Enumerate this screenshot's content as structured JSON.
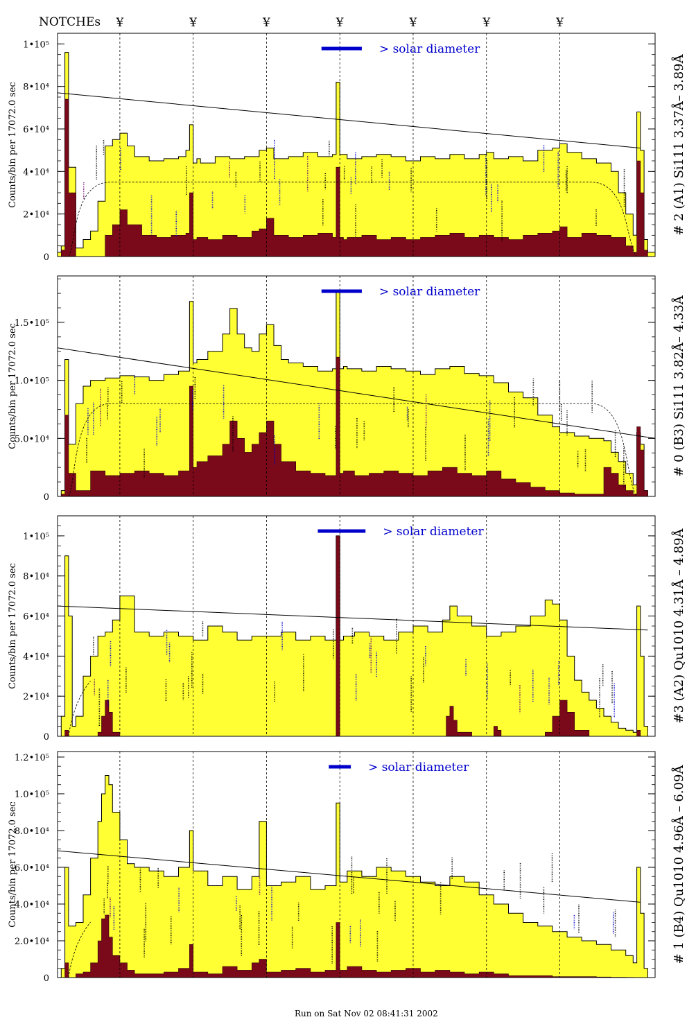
{
  "header": {
    "notches_label": "NOTCHEs",
    "notch_marker": "¥",
    "notch_positions": [
      2.0,
      3.0,
      4.0,
      5.0,
      6.0,
      7.0,
      8.0
    ]
  },
  "footer": {
    "run_label": "Run on Sat Nov 02 08:41:31 2002"
  },
  "colors": {
    "total_fill": "#ffff33",
    "source_fill": "#7a0a1a",
    "annotation_blue": "#0000cc",
    "annotation_purple": "#660066",
    "axes": "#000000"
  },
  "chart_data": [
    {
      "type": "area",
      "channel_label": "# 2 (A1) Si111  3.37Å– 3.89Å",
      "ylabel": "Counts/bin per  17072.0 sec",
      "ytick_labels": [
        "0",
        "2•10⁴",
        "4•10⁴",
        "6•10⁴",
        "8•10⁴",
        "1•10⁵"
      ],
      "ytick_values": [
        0,
        20000,
        40000,
        60000,
        80000,
        100000
      ],
      "ylim": [
        0,
        105000
      ],
      "xlim": [
        1.15,
        9.3
      ],
      "solar_label": "> solar diameter",
      "solar_bar": [
        4.75,
        5.3
      ],
      "fit_line": [
        [
          1.15,
          77000
        ],
        [
          9.1,
          51000
        ]
      ],
      "dashed_level": 35000,
      "dashed_edges": [
        1.5,
        8.8
      ],
      "total_counts": {
        "x": [
          1.15,
          1.2,
          1.25,
          1.3,
          1.4,
          1.5,
          1.6,
          1.7,
          1.8,
          1.9,
          2.0,
          2.1,
          2.2,
          2.4,
          2.6,
          2.8,
          2.9,
          2.95,
          3.0,
          3.05,
          3.1,
          3.3,
          3.5,
          3.7,
          3.9,
          4.0,
          4.1,
          4.3,
          4.5,
          4.7,
          4.9,
          4.95,
          5.0,
          5.05,
          5.1,
          5.3,
          5.5,
          5.7,
          5.9,
          6.1,
          6.3,
          6.5,
          6.7,
          6.9,
          7.0,
          7.1,
          7.3,
          7.5,
          7.7,
          7.9,
          8.0,
          8.1,
          8.3,
          8.5,
          8.6,
          8.7,
          8.8,
          8.9,
          9.0,
          9.05,
          9.1,
          9.15,
          9.2,
          9.3
        ],
        "y": [
          2000,
          5000,
          96000,
          42000,
          4000,
          8000,
          12000,
          26000,
          52000,
          55000,
          58000,
          52000,
          47000,
          45000,
          46000,
          47000,
          50000,
          62000,
          44000,
          46000,
          44000,
          47000,
          46000,
          47000,
          50000,
          51000,
          46000,
          47000,
          49000,
          47000,
          48000,
          82000,
          48000,
          48000,
          46000,
          47000,
          48000,
          47000,
          45000,
          47000,
          46000,
          48000,
          46000,
          48000,
          49000,
          46000,
          47000,
          45000,
          50000,
          51000,
          53000,
          49000,
          46000,
          44000,
          44000,
          40000,
          30000,
          20000,
          10000,
          68000,
          50000,
          8000,
          2000,
          0
        ]
      },
      "source_counts": {
        "x": [
          1.15,
          1.2,
          1.25,
          1.3,
          1.4,
          1.5,
          1.6,
          1.7,
          1.8,
          1.9,
          2.0,
          2.1,
          2.3,
          2.5,
          2.7,
          2.9,
          2.95,
          3.0,
          3.05,
          3.2,
          3.4,
          3.6,
          3.8,
          3.9,
          4.0,
          4.1,
          4.3,
          4.5,
          4.7,
          4.9,
          4.95,
          5.0,
          5.05,
          5.1,
          5.3,
          5.5,
          5.7,
          5.9,
          6.1,
          6.3,
          6.5,
          6.7,
          6.9,
          7.1,
          7.3,
          7.5,
          7.7,
          7.9,
          8.0,
          8.1,
          8.3,
          8.5,
          8.7,
          8.9,
          9.0,
          9.05,
          9.1,
          9.15,
          9.2,
          9.3
        ],
        "y": [
          0,
          3000,
          74000,
          30000,
          0,
          0,
          0,
          0,
          10000,
          15000,
          22000,
          15000,
          10000,
          9000,
          10000,
          11000,
          30000,
          8000,
          9000,
          8000,
          10000,
          9000,
          12000,
          13000,
          18000,
          10000,
          9000,
          10000,
          11000,
          9000,
          42000,
          9000,
          8000,
          9000,
          10000,
          8000,
          9000,
          8000,
          9000,
          10000,
          11000,
          9000,
          10000,
          9000,
          8000,
          10000,
          11000,
          12000,
          14000,
          9000,
          11000,
          10000,
          9000,
          5000,
          2000,
          45000,
          30000,
          3000,
          0,
          0
        ]
      }
    },
    {
      "type": "area",
      "channel_label": "# 0 (B3) Si111  3.82Å– 4.33Å",
      "ylabel": "Counts/bin per  17072.0 sec",
      "ytick_labels": [
        "0",
        "5.0•10⁴",
        "1.0•10⁵",
        "1.5•10⁵"
      ],
      "ytick_values": [
        0,
        50000,
        100000,
        150000
      ],
      "ylim": [
        0,
        190000
      ],
      "xlim": [
        1.15,
        9.3
      ],
      "solar_label": "> solar diameter",
      "solar_bar": [
        4.75,
        5.3
      ],
      "fit_line": [
        [
          1.15,
          128000
        ],
        [
          9.3,
          50000
        ]
      ],
      "dashed_level": 80000,
      "dashed_edges": [
        1.5,
        8.8
      ],
      "total_counts": {
        "x": [
          1.15,
          1.2,
          1.25,
          1.3,
          1.4,
          1.5,
          1.6,
          1.8,
          2.0,
          2.2,
          2.4,
          2.6,
          2.8,
          2.95,
          3.0,
          3.05,
          3.2,
          3.4,
          3.5,
          3.6,
          3.7,
          3.8,
          3.9,
          4.0,
          4.1,
          4.2,
          4.3,
          4.5,
          4.7,
          4.9,
          4.95,
          5.0,
          5.05,
          5.1,
          5.3,
          5.5,
          5.7,
          5.9,
          6.1,
          6.3,
          6.5,
          6.7,
          6.9,
          7.1,
          7.3,
          7.5,
          7.7,
          7.9,
          8.0,
          8.2,
          8.4,
          8.6,
          8.7,
          8.8,
          8.9,
          9.0,
          9.05,
          9.1,
          9.15,
          9.2,
          9.3
        ],
        "y": [
          0,
          5000,
          118000,
          45000,
          80000,
          95000,
          100000,
          102000,
          104000,
          103000,
          100000,
          105000,
          108000,
          168000,
          115000,
          118000,
          125000,
          140000,
          162000,
          140000,
          128000,
          125000,
          140000,
          148000,
          130000,
          118000,
          115000,
          112000,
          108000,
          110000,
          178000,
          110000,
          112000,
          110000,
          108000,
          112000,
          110000,
          108000,
          105000,
          110000,
          112000,
          106000,
          104000,
          98000,
          90000,
          85000,
          70000,
          60000,
          55000,
          52000,
          50000,
          48000,
          38000,
          30000,
          20000,
          10000,
          55000,
          45000,
          5000,
          0,
          0
        ]
      },
      "source_counts": {
        "x": [
          1.15,
          1.2,
          1.25,
          1.3,
          1.4,
          1.6,
          1.8,
          2.0,
          2.2,
          2.4,
          2.6,
          2.8,
          2.95,
          3.0,
          3.05,
          3.2,
          3.4,
          3.5,
          3.6,
          3.7,
          3.8,
          3.9,
          4.0,
          4.1,
          4.2,
          4.4,
          4.6,
          4.8,
          4.95,
          5.0,
          5.05,
          5.2,
          5.4,
          5.6,
          5.8,
          6.0,
          6.2,
          6.4,
          6.6,
          6.8,
          7.0,
          7.2,
          7.4,
          7.6,
          7.8,
          8.0,
          8.2,
          8.4,
          8.6,
          8.7,
          8.8,
          8.9,
          9.0,
          9.05,
          9.1,
          9.15,
          9.2,
          9.3
        ],
        "y": [
          0,
          2000,
          70000,
          20000,
          5000,
          22000,
          18000,
          20000,
          22000,
          20000,
          18000,
          22000,
          95000,
          25000,
          30000,
          35000,
          45000,
          65000,
          50000,
          38000,
          45000,
          55000,
          65000,
          45000,
          30000,
          22000,
          20000,
          18000,
          120000,
          20000,
          22000,
          18000,
          20000,
          22000,
          20000,
          18000,
          22000,
          25000,
          20000,
          18000,
          22000,
          15000,
          12000,
          8000,
          5000,
          3000,
          2000,
          2000,
          25000,
          20000,
          10000,
          5000,
          2000,
          60000,
          40000,
          5000,
          0,
          0
        ]
      }
    },
    {
      "type": "area",
      "channel_label": "#3 (A2) Qu1010  4.31Å – 4.89Å",
      "ylabel": "Counts/bin per  17072.0 sec",
      "ytick_labels": [
        "0",
        "2•10⁴",
        "4•10⁴",
        "6•10⁴",
        "8•10⁴",
        "1•10⁵"
      ],
      "ytick_values": [
        0,
        20000,
        40000,
        60000,
        80000,
        100000
      ],
      "ylim": [
        0,
        110000
      ],
      "xlim": [
        1.15,
        9.3
      ],
      "solar_label": "> solar diameter",
      "solar_bar": [
        4.7,
        5.35
      ],
      "fit_line": [
        [
          1.15,
          65000
        ],
        [
          9.2,
          53000
        ]
      ],
      "dashed_level": 0,
      "dashed_edges": [
        1.3,
        9.0
      ],
      "total_counts": {
        "x": [
          1.15,
          1.2,
          1.25,
          1.3,
          1.35,
          1.4,
          1.5,
          1.6,
          1.7,
          1.8,
          1.9,
          2.0,
          2.2,
          2.4,
          2.6,
          2.8,
          3.0,
          3.2,
          3.4,
          3.6,
          3.8,
          4.0,
          4.2,
          4.4,
          4.6,
          4.8,
          4.95,
          5.0,
          5.05,
          5.2,
          5.4,
          5.6,
          5.8,
          6.0,
          6.2,
          6.4,
          6.5,
          6.6,
          6.8,
          7.0,
          7.2,
          7.4,
          7.6,
          7.8,
          7.9,
          8.0,
          8.1,
          8.2,
          8.3,
          8.4,
          8.5,
          8.6,
          8.7,
          8.8,
          8.9,
          9.0,
          9.05,
          9.1,
          9.15,
          9.2,
          9.3
        ],
        "y": [
          0,
          10000,
          90000,
          60000,
          5000,
          10000,
          30000,
          40000,
          50000,
          52000,
          58000,
          70000,
          52000,
          50000,
          52000,
          50000,
          48000,
          55000,
          52000,
          48000,
          50000,
          50000,
          52000,
          48000,
          50000,
          48000,
          100000,
          48000,
          50000,
          52000,
          50000,
          48000,
          52000,
          55000,
          52000,
          58000,
          65000,
          60000,
          55000,
          50000,
          52000,
          55000,
          60000,
          68000,
          66000,
          58000,
          40000,
          28000,
          22000,
          18000,
          14000,
          10000,
          7000,
          4000,
          3000,
          2000,
          65000,
          40000,
          5000,
          0,
          0
        ]
      },
      "source_counts": {
        "x": [
          1.15,
          1.2,
          1.25,
          1.3,
          1.4,
          1.6,
          1.7,
          1.75,
          1.8,
          1.85,
          1.9,
          2.0,
          2.2,
          2.4,
          2.6,
          2.8,
          3.0,
          3.2,
          3.4,
          3.6,
          3.8,
          4.0,
          4.2,
          4.4,
          4.6,
          4.8,
          4.95,
          5.0,
          5.05,
          5.2,
          5.4,
          5.6,
          5.8,
          6.0,
          6.2,
          6.4,
          6.45,
          6.5,
          6.55,
          6.6,
          6.8,
          7.0,
          7.1,
          7.15,
          7.2,
          7.4,
          7.6,
          7.8,
          7.9,
          8.0,
          8.1,
          8.2,
          8.4,
          8.6,
          8.8,
          9.0,
          9.05,
          9.1,
          9.2,
          9.3
        ],
        "y": [
          0,
          0,
          3000,
          0,
          0,
          0,
          2000,
          10000,
          18000,
          12000,
          2000,
          0,
          0,
          0,
          0,
          0,
          0,
          0,
          0,
          0,
          0,
          0,
          0,
          0,
          0,
          0,
          100000,
          0,
          0,
          0,
          0,
          0,
          0,
          0,
          0,
          0,
          10000,
          15000,
          8000,
          2000,
          0,
          0,
          5000,
          3000,
          0,
          0,
          0,
          2000,
          10000,
          18000,
          12000,
          3000,
          0,
          0,
          0,
          0,
          3000,
          0,
          0,
          0
        ]
      }
    },
    {
      "type": "area",
      "channel_label": "# 1 (B4) Qu1010 4.96Å – 6.09Å",
      "ylabel": "Counts/bin per  17072.0 sec",
      "ytick_labels": [
        "0",
        "2.0•10⁴",
        "4.0•10⁴",
        "6.0•10⁴",
        "8.0•10⁴",
        "1.0•10⁵",
        "1.2•10⁵"
      ],
      "ytick_values": [
        0,
        20000,
        40000,
        60000,
        80000,
        100000,
        120000
      ],
      "ylim": [
        0,
        123000
      ],
      "xlim": [
        1.15,
        9.3
      ],
      "solar_label": "> solar diameter",
      "solar_bar": [
        4.85,
        5.15
      ],
      "fit_line": [
        [
          1.15,
          69000
        ],
        [
          9.1,
          41000
        ]
      ],
      "dashed_level": 0,
      "dashed_edges": [
        1.3,
        9.0
      ],
      "total_counts": {
        "x": [
          1.15,
          1.2,
          1.25,
          1.3,
          1.4,
          1.5,
          1.6,
          1.7,
          1.75,
          1.8,
          1.85,
          1.9,
          2.0,
          2.1,
          2.2,
          2.4,
          2.6,
          2.8,
          2.95,
          3.0,
          3.2,
          3.4,
          3.6,
          3.8,
          3.9,
          4.0,
          4.2,
          4.4,
          4.6,
          4.8,
          4.95,
          5.0,
          5.1,
          5.3,
          5.5,
          5.7,
          5.9,
          6.1,
          6.3,
          6.5,
          6.7,
          6.9,
          7.1,
          7.3,
          7.5,
          7.7,
          7.9,
          8.1,
          8.3,
          8.5,
          8.7,
          8.9,
          9.0,
          9.05,
          9.1,
          9.15,
          9.2,
          9.3
        ],
        "y": [
          0,
          5000,
          60000,
          28000,
          30000,
          45000,
          65000,
          85000,
          100000,
          110000,
          105000,
          90000,
          75000,
          62000,
          60000,
          58000,
          55000,
          60000,
          80000,
          58000,
          50000,
          55000,
          48000,
          55000,
          85000,
          50000,
          52000,
          55000,
          48000,
          50000,
          95000,
          52000,
          58000,
          55000,
          60000,
          58000,
          55000,
          52000,
          50000,
          55000,
          52000,
          45000,
          40000,
          35000,
          30000,
          28000,
          25000,
          22000,
          20000,
          18000,
          15000,
          12000,
          8000,
          60000,
          35000,
          5000,
          0,
          0
        ]
      },
      "source_counts": {
        "x": [
          1.15,
          1.2,
          1.25,
          1.3,
          1.4,
          1.5,
          1.6,
          1.7,
          1.75,
          1.8,
          1.85,
          1.9,
          2.0,
          2.1,
          2.2,
          2.4,
          2.6,
          2.8,
          2.95,
          3.0,
          3.2,
          3.4,
          3.6,
          3.8,
          3.9,
          4.0,
          4.2,
          4.4,
          4.6,
          4.8,
          4.95,
          5.0,
          5.1,
          5.3,
          5.5,
          5.7,
          5.9,
          6.1,
          6.3,
          6.5,
          6.7,
          6.9,
          7.1,
          7.3,
          7.5,
          7.7,
          7.9,
          8.1,
          8.3,
          8.5,
          8.7,
          8.9,
          9.0,
          9.3
        ],
        "y": [
          0,
          0,
          8000,
          0,
          2000,
          3000,
          8000,
          20000,
          32000,
          34000,
          22000,
          12000,
          8000,
          4000,
          2000,
          2000,
          3000,
          5000,
          18000,
          3000,
          2000,
          6000,
          4000,
          8000,
          10000,
          3000,
          4000,
          5000,
          3000,
          4000,
          30000,
          4000,
          6000,
          4000,
          3000,
          4000,
          5000,
          3000,
          4000,
          3000,
          2000,
          3000,
          2000,
          1000,
          1000,
          1000,
          500,
          500,
          500,
          300,
          200,
          100,
          0,
          0
        ]
      }
    }
  ]
}
